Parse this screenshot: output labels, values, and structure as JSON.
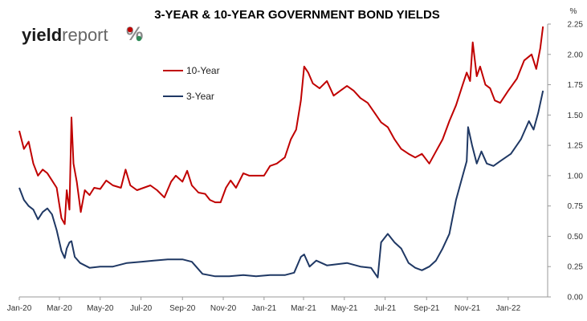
{
  "chart_data": {
    "type": "line",
    "title": "3-YEAR & 10-YEAR GOVERNMENT BOND YIELDS",
    "y_unit": "%",
    "ylim": [
      0,
      2.25
    ],
    "y_ticks": [
      "0.00",
      "0.25",
      "0.50",
      "0.75",
      "1.00",
      "1.25",
      "1.50",
      "1.75",
      "2.00",
      "2.25"
    ],
    "x_ticks": [
      "Jan-20",
      "Mar-20",
      "May-20",
      "Jul-20",
      "Sep-20",
      "Nov-20",
      "Jan-21",
      "Mar-21",
      "May-21",
      "Jul-21",
      "Sep-21",
      "Nov-21",
      "Jan-22"
    ],
    "grid": false,
    "legend_position": "upper-left",
    "series": [
      {
        "name": "10-Year",
        "color": "#c00000",
        "points": [
          [
            "2020-01-01",
            1.37
          ],
          [
            "2020-01-08",
            1.22
          ],
          [
            "2020-01-15",
            1.28
          ],
          [
            "2020-01-22",
            1.1
          ],
          [
            "2020-01-29",
            1.0
          ],
          [
            "2020-02-05",
            1.05
          ],
          [
            "2020-02-12",
            1.02
          ],
          [
            "2020-02-19",
            0.96
          ],
          [
            "2020-02-26",
            0.9
          ],
          [
            "2020-03-04",
            0.65
          ],
          [
            "2020-03-09",
            0.6
          ],
          [
            "2020-03-12",
            0.88
          ],
          [
            "2020-03-16",
            0.72
          ],
          [
            "2020-03-19",
            1.48
          ],
          [
            "2020-03-22",
            1.1
          ],
          [
            "2020-03-27",
            0.95
          ],
          [
            "2020-04-02",
            0.7
          ],
          [
            "2020-04-08",
            0.88
          ],
          [
            "2020-04-15",
            0.84
          ],
          [
            "2020-04-22",
            0.9
          ],
          [
            "2020-05-01",
            0.89
          ],
          [
            "2020-05-10",
            0.96
          ],
          [
            "2020-05-20",
            0.92
          ],
          [
            "2020-06-01",
            0.9
          ],
          [
            "2020-06-08",
            1.05
          ],
          [
            "2020-06-15",
            0.92
          ],
          [
            "2020-06-25",
            0.88
          ],
          [
            "2020-07-05",
            0.9
          ],
          [
            "2020-07-15",
            0.92
          ],
          [
            "2020-07-25",
            0.88
          ],
          [
            "2020-08-05",
            0.82
          ],
          [
            "2020-08-15",
            0.95
          ],
          [
            "2020-08-22",
            1.0
          ],
          [
            "2020-09-01",
            0.95
          ],
          [
            "2020-09-08",
            1.04
          ],
          [
            "2020-09-15",
            0.92
          ],
          [
            "2020-09-25",
            0.86
          ],
          [
            "2020-10-05",
            0.85
          ],
          [
            "2020-10-12",
            0.8
          ],
          [
            "2020-10-20",
            0.78
          ],
          [
            "2020-10-28",
            0.78
          ],
          [
            "2020-11-05",
            0.9
          ],
          [
            "2020-11-12",
            0.96
          ],
          [
            "2020-11-20",
            0.9
          ],
          [
            "2020-12-01",
            1.02
          ],
          [
            "2020-12-10",
            1.0
          ],
          [
            "2020-12-20",
            1.0
          ],
          [
            "2021-01-01",
            1.0
          ],
          [
            "2021-01-10",
            1.08
          ],
          [
            "2021-01-20",
            1.1
          ],
          [
            "2021-02-01",
            1.15
          ],
          [
            "2021-02-10",
            1.3
          ],
          [
            "2021-02-18",
            1.38
          ],
          [
            "2021-02-25",
            1.62
          ],
          [
            "2021-03-02",
            1.9
          ],
          [
            "2021-03-08",
            1.85
          ],
          [
            "2021-03-15",
            1.76
          ],
          [
            "2021-03-25",
            1.72
          ],
          [
            "2021-04-05",
            1.78
          ],
          [
            "2021-04-15",
            1.66
          ],
          [
            "2021-04-25",
            1.7
          ],
          [
            "2021-05-05",
            1.74
          ],
          [
            "2021-05-15",
            1.7
          ],
          [
            "2021-05-25",
            1.64
          ],
          [
            "2021-06-05",
            1.6
          ],
          [
            "2021-06-15",
            1.52
          ],
          [
            "2021-06-25",
            1.44
          ],
          [
            "2021-07-05",
            1.4
          ],
          [
            "2021-07-15",
            1.3
          ],
          [
            "2021-07-25",
            1.22
          ],
          [
            "2021-08-05",
            1.18
          ],
          [
            "2021-08-15",
            1.15
          ],
          [
            "2021-08-25",
            1.18
          ],
          [
            "2021-09-05",
            1.1
          ],
          [
            "2021-09-15",
            1.2
          ],
          [
            "2021-09-25",
            1.3
          ],
          [
            "2021-10-05",
            1.45
          ],
          [
            "2021-10-15",
            1.58
          ],
          [
            "2021-10-25",
            1.75
          ],
          [
            "2021-10-31",
            1.85
          ],
          [
            "2021-11-05",
            1.78
          ],
          [
            "2021-11-09",
            2.1
          ],
          [
            "2021-11-15",
            1.82
          ],
          [
            "2021-11-20",
            1.9
          ],
          [
            "2021-11-28",
            1.75
          ],
          [
            "2021-12-05",
            1.72
          ],
          [
            "2021-12-12",
            1.62
          ],
          [
            "2021-12-20",
            1.6
          ],
          [
            "2022-01-01",
            1.7
          ],
          [
            "2022-01-14",
            1.8
          ],
          [
            "2022-01-25",
            1.95
          ],
          [
            "2022-02-05",
            2.0
          ],
          [
            "2022-02-12",
            1.88
          ],
          [
            "2022-02-18",
            2.05
          ],
          [
            "2022-02-22",
            2.23
          ]
        ]
      },
      {
        "name": "3-Year",
        "color": "#1f3864",
        "points": [
          [
            "2020-01-01",
            0.9
          ],
          [
            "2020-01-08",
            0.8
          ],
          [
            "2020-01-15",
            0.75
          ],
          [
            "2020-01-22",
            0.72
          ],
          [
            "2020-01-29",
            0.64
          ],
          [
            "2020-02-05",
            0.7
          ],
          [
            "2020-02-12",
            0.73
          ],
          [
            "2020-02-19",
            0.68
          ],
          [
            "2020-02-26",
            0.55
          ],
          [
            "2020-03-04",
            0.38
          ],
          [
            "2020-03-09",
            0.32
          ],
          [
            "2020-03-12",
            0.4
          ],
          [
            "2020-03-16",
            0.45
          ],
          [
            "2020-03-19",
            0.46
          ],
          [
            "2020-03-24",
            0.33
          ],
          [
            "2020-04-01",
            0.28
          ],
          [
            "2020-04-15",
            0.24
          ],
          [
            "2020-05-01",
            0.25
          ],
          [
            "2020-05-20",
            0.25
          ],
          [
            "2020-06-10",
            0.28
          ],
          [
            "2020-07-01",
            0.29
          ],
          [
            "2020-07-20",
            0.3
          ],
          [
            "2020-08-10",
            0.31
          ],
          [
            "2020-09-01",
            0.31
          ],
          [
            "2020-09-15",
            0.29
          ],
          [
            "2020-10-01",
            0.19
          ],
          [
            "2020-10-20",
            0.17
          ],
          [
            "2020-11-10",
            0.17
          ],
          [
            "2020-12-01",
            0.18
          ],
          [
            "2020-12-20",
            0.17
          ],
          [
            "2021-01-10",
            0.18
          ],
          [
            "2021-02-01",
            0.18
          ],
          [
            "2021-02-15",
            0.2
          ],
          [
            "2021-02-25",
            0.33
          ],
          [
            "2021-03-02",
            0.35
          ],
          [
            "2021-03-10",
            0.25
          ],
          [
            "2021-03-20",
            0.3
          ],
          [
            "2021-04-05",
            0.26
          ],
          [
            "2021-04-20",
            0.27
          ],
          [
            "2021-05-05",
            0.28
          ],
          [
            "2021-05-25",
            0.25
          ],
          [
            "2021-06-10",
            0.24
          ],
          [
            "2021-06-20",
            0.16
          ],
          [
            "2021-06-25",
            0.45
          ],
          [
            "2021-07-05",
            0.52
          ],
          [
            "2021-07-15",
            0.45
          ],
          [
            "2021-07-25",
            0.4
          ],
          [
            "2021-08-05",
            0.28
          ],
          [
            "2021-08-15",
            0.24
          ],
          [
            "2021-08-25",
            0.22
          ],
          [
            "2021-09-05",
            0.25
          ],
          [
            "2021-09-15",
            0.3
          ],
          [
            "2021-09-25",
            0.4
          ],
          [
            "2021-10-05",
            0.52
          ],
          [
            "2021-10-15",
            0.8
          ],
          [
            "2021-10-25",
            1.0
          ],
          [
            "2021-10-31",
            1.12
          ],
          [
            "2021-11-02",
            1.4
          ],
          [
            "2021-11-08",
            1.25
          ],
          [
            "2021-11-15",
            1.1
          ],
          [
            "2021-11-22",
            1.2
          ],
          [
            "2021-11-30",
            1.1
          ],
          [
            "2021-12-10",
            1.08
          ],
          [
            "2021-12-20",
            1.12
          ],
          [
            "2022-01-05",
            1.18
          ],
          [
            "2022-01-20",
            1.3
          ],
          [
            "2022-02-01",
            1.45
          ],
          [
            "2022-02-08",
            1.38
          ],
          [
            "2022-02-15",
            1.52
          ],
          [
            "2022-02-22",
            1.7
          ]
        ]
      }
    ]
  },
  "logo": {
    "part_a": "yield",
    "part_b": "report",
    "part_c": "%"
  }
}
